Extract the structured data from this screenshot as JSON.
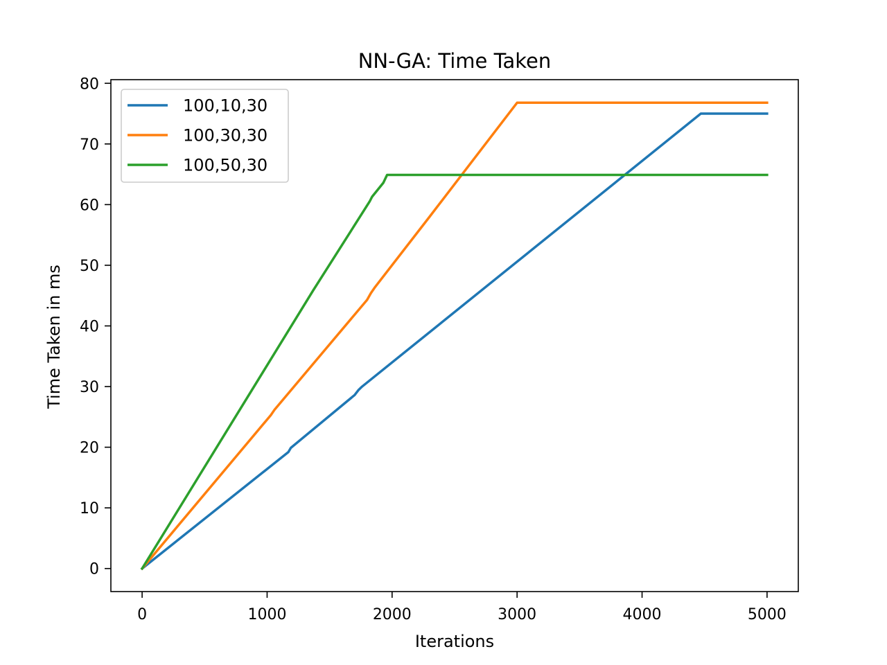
{
  "chart_data": {
    "type": "line",
    "title": "NN-GA: Time Taken",
    "xlabel": "Iterations",
    "ylabel": "Time Taken in ms",
    "xlim": [
      -250,
      5250
    ],
    "ylim": [
      -3.8,
      80.6
    ],
    "xticks": [
      0,
      1000,
      2000,
      3000,
      4000,
      5000
    ],
    "yticks": [
      0,
      10,
      20,
      30,
      40,
      50,
      60,
      70,
      80
    ],
    "grid": false,
    "legend_position": "upper left",
    "series": [
      {
        "name": "100,10,30",
        "color": "#1f77b4",
        "x": [
          0,
          1170,
          1190,
          1700,
          1730,
          1760,
          4470,
          5000
        ],
        "y": [
          0,
          19.2,
          19.9,
          28.6,
          29.4,
          30.0,
          75.0,
          75.0
        ]
      },
      {
        "name": "100,30,30",
        "color": "#ff7f0e",
        "x": [
          0,
          1030,
          1060,
          1800,
          1830,
          1860,
          2300,
          3000,
          5000
        ],
        "y": [
          0,
          25.3,
          26.2,
          44.3,
          45.4,
          46.3,
          58.0,
          76.8,
          76.8
        ]
      },
      {
        "name": "100,50,30",
        "color": "#2ca02c",
        "x": [
          0,
          1370,
          1820,
          1840,
          1930,
          1960,
          5000
        ],
        "y": [
          0,
          45.9,
          60.5,
          61.3,
          63.6,
          64.9,
          64.9
        ]
      }
    ]
  }
}
